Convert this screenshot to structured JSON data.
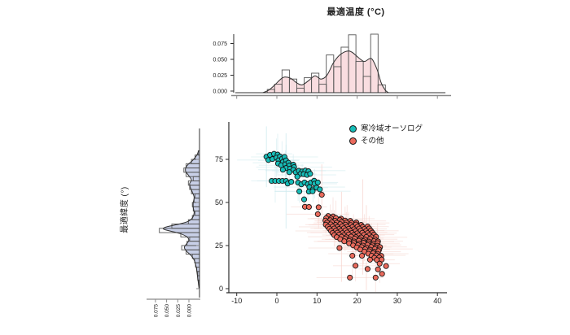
{
  "figure": {
    "title": "最適温度 (°C)",
    "ylabel": "最適緯度 (°)"
  },
  "legend": {
    "items": [
      {
        "label": "寒冷域オーソログ",
        "color": "#16bdb8"
      },
      {
        "label": "その他",
        "color": "#ea6a5c"
      }
    ]
  },
  "style": {
    "point_stroke": "#141414",
    "axis_color": "#2b2b2b",
    "minor_axis_color": "#8a8a8a",
    "tick_label_color": "#1a1a1a",
    "err_cold": "#cdeaef",
    "err_other": "#f7d5cf"
  },
  "chart_data": {
    "type": "scatter",
    "title": "最適温度 (°C)",
    "xlabel": "最適温度 (°C)",
    "ylabel": "最適緯度 (°)",
    "xlim": [
      -12,
      42
    ],
    "ylim": [
      -2,
      82
    ],
    "x_ticks": [
      -10,
      0,
      10,
      20,
      30,
      40
    ],
    "y_ticks": [
      0,
      25,
      50,
      75
    ],
    "grid": false,
    "legend_position": "top-right-inside",
    "series": [
      {
        "name": "寒冷域オーソログ",
        "color": "#16bdb8",
        "marker": "circle",
        "points": [
          [
            -2.6,
            76.5
          ],
          [
            -1.7,
            77.6
          ],
          [
            -0.7,
            78.2
          ],
          [
            0.2,
            77.8
          ],
          [
            -2.1,
            74.6
          ],
          [
            -1.1,
            75.2
          ],
          [
            -0.1,
            76.0
          ],
          [
            0.8,
            76.6
          ],
          [
            0.4,
            74.4
          ],
          [
            1.3,
            75.4
          ],
          [
            1.9,
            76.4
          ],
          [
            1.5,
            73.5
          ],
          [
            2.3,
            74.4
          ],
          [
            0.3,
            72.6
          ],
          [
            1.1,
            71.6
          ],
          [
            2.1,
            72.1
          ],
          [
            2.9,
            73.0
          ],
          [
            3.1,
            71.4
          ],
          [
            2.3,
            70.0
          ],
          [
            3.3,
            69.6
          ],
          [
            1.5,
            69.0
          ],
          [
            4.1,
            71.9
          ],
          [
            4.3,
            70.5
          ],
          [
            4.1,
            68.9
          ],
          [
            3.1,
            67.6
          ],
          [
            4.7,
            67.5
          ],
          [
            5.5,
            68.4
          ],
          [
            6.3,
            68.0
          ],
          [
            7.1,
            68.5
          ],
          [
            7.9,
            68.1
          ],
          [
            5.9,
            66.5
          ],
          [
            6.7,
            66.4
          ],
          [
            7.5,
            66.0
          ],
          [
            8.3,
            66.6
          ],
          [
            5.1,
            65.0
          ],
          [
            -1.3,
            62.5
          ],
          [
            -0.4,
            62.5
          ],
          [
            0.5,
            62.5
          ],
          [
            1.4,
            62.5
          ],
          [
            2.3,
            62.5
          ],
          [
            2.7,
            61.0
          ],
          [
            3.6,
            62.0
          ],
          [
            5.3,
            61.5
          ],
          [
            6.1,
            60.5
          ],
          [
            6.9,
            61.6
          ],
          [
            7.7,
            60.6
          ],
          [
            8.5,
            61.6
          ],
          [
            9.3,
            62.6
          ],
          [
            9.4,
            60.9
          ],
          [
            10.2,
            61.6
          ],
          [
            8.1,
            58.9
          ],
          [
            9.0,
            57.6
          ],
          [
            9.9,
            58.6
          ],
          [
            10.7,
            57.6
          ],
          [
            5.6,
            56.4
          ],
          [
            8.0,
            56.3
          ],
          [
            8.9,
            56.5
          ],
          [
            6.8,
            51.8
          ]
        ]
      },
      {
        "name": "その他",
        "color": "#ea6a5c",
        "marker": "circle",
        "points": [
          [
            11.2,
            54.5
          ],
          [
            7.0,
            47.5
          ],
          [
            8.0,
            47.4
          ],
          [
            10.4,
            47.2
          ],
          [
            10.2,
            43.2
          ],
          [
            12.8,
            42.1
          ],
          [
            14.0,
            41.9
          ],
          [
            12.3,
            40.9
          ],
          [
            13.5,
            40.7
          ],
          [
            14.7,
            41.0
          ],
          [
            16.0,
            40.6
          ],
          [
            12.1,
            39.5
          ],
          [
            13.3,
            39.7
          ],
          [
            14.5,
            39.4
          ],
          [
            15.7,
            39.8
          ],
          [
            17.0,
            39.5
          ],
          [
            18.3,
            39.3
          ],
          [
            12.5,
            38.3
          ],
          [
            13.7,
            38.5
          ],
          [
            14.9,
            38.2
          ],
          [
            16.1,
            38.6
          ],
          [
            17.3,
            38.3
          ],
          [
            18.6,
            38.1
          ],
          [
            19.8,
            38.4
          ],
          [
            12.2,
            37.1
          ],
          [
            13.4,
            37.3
          ],
          [
            14.6,
            37.0
          ],
          [
            15.8,
            37.4
          ],
          [
            17.1,
            37.1
          ],
          [
            18.4,
            36.9
          ],
          [
            19.7,
            37.2
          ],
          [
            21.0,
            37.0
          ],
          [
            12.7,
            35.9
          ],
          [
            13.9,
            36.1
          ],
          [
            15.1,
            35.8
          ],
          [
            16.3,
            36.2
          ],
          [
            17.5,
            35.9
          ],
          [
            18.8,
            35.7
          ],
          [
            20.1,
            36.0
          ],
          [
            21.4,
            35.8
          ],
          [
            22.6,
            36.1
          ],
          [
            13.1,
            34.7
          ],
          [
            14.3,
            34.9
          ],
          [
            15.5,
            34.6
          ],
          [
            16.7,
            35.0
          ],
          [
            17.9,
            34.7
          ],
          [
            19.2,
            34.5
          ],
          [
            20.5,
            34.8
          ],
          [
            21.8,
            34.6
          ],
          [
            23.0,
            34.9
          ],
          [
            13.5,
            33.5
          ],
          [
            14.7,
            33.7
          ],
          [
            15.9,
            33.4
          ],
          [
            17.1,
            33.8
          ],
          [
            18.3,
            33.5
          ],
          [
            19.6,
            33.3
          ],
          [
            20.9,
            33.6
          ],
          [
            22.2,
            33.4
          ],
          [
            23.4,
            33.7
          ],
          [
            13.9,
            32.3
          ],
          [
            15.1,
            32.5
          ],
          [
            16.3,
            32.2
          ],
          [
            17.5,
            32.6
          ],
          [
            18.7,
            32.3
          ],
          [
            20.0,
            32.1
          ],
          [
            21.3,
            32.4
          ],
          [
            22.6,
            32.2
          ],
          [
            23.8,
            32.5
          ],
          [
            14.3,
            31.1
          ],
          [
            15.5,
            31.3
          ],
          [
            16.7,
            31.0
          ],
          [
            17.9,
            31.4
          ],
          [
            19.1,
            31.1
          ],
          [
            20.4,
            30.9
          ],
          [
            21.7,
            31.2
          ],
          [
            23.0,
            31.0
          ],
          [
            24.2,
            31.3
          ],
          [
            14.9,
            29.9
          ],
          [
            16.1,
            30.1
          ],
          [
            17.3,
            29.8
          ],
          [
            18.5,
            30.2
          ],
          [
            19.7,
            29.9
          ],
          [
            21.0,
            29.7
          ],
          [
            22.3,
            30.0
          ],
          [
            23.6,
            29.8
          ],
          [
            24.7,
            30.1
          ],
          [
            15.8,
            28.7
          ],
          [
            17.0,
            28.9
          ],
          [
            18.2,
            28.6
          ],
          [
            19.4,
            29.0
          ],
          [
            20.6,
            28.7
          ],
          [
            21.9,
            28.5
          ],
          [
            23.2,
            28.8
          ],
          [
            24.4,
            28.6
          ],
          [
            16.8,
            27.5
          ],
          [
            18.0,
            27.7
          ],
          [
            19.2,
            27.4
          ],
          [
            20.4,
            27.8
          ],
          [
            21.6,
            27.5
          ],
          [
            22.9,
            27.3
          ],
          [
            24.2,
            27.6
          ],
          [
            25.2,
            27.4
          ],
          [
            18.0,
            26.3
          ],
          [
            19.2,
            26.5
          ],
          [
            20.4,
            26.2
          ],
          [
            21.6,
            26.6
          ],
          [
            22.8,
            26.3
          ],
          [
            24.0,
            26.1
          ],
          [
            25.1,
            26.4
          ],
          [
            19.0,
            25.1
          ],
          [
            20.2,
            25.3
          ],
          [
            21.4,
            25.0
          ],
          [
            22.6,
            25.4
          ],
          [
            23.8,
            25.1
          ],
          [
            25.0,
            24.9
          ],
          [
            19.9,
            23.9
          ],
          [
            21.1,
            24.1
          ],
          [
            22.3,
            23.8
          ],
          [
            23.5,
            24.2
          ],
          [
            24.7,
            23.9
          ],
          [
            25.7,
            24.1
          ],
          [
            20.8,
            22.7
          ],
          [
            22.0,
            22.9
          ],
          [
            23.2,
            22.6
          ],
          [
            24.4,
            23.0
          ],
          [
            25.5,
            22.7
          ],
          [
            21.8,
            21.5
          ],
          [
            23.0,
            21.7
          ],
          [
            24.2,
            21.4
          ],
          [
            25.3,
            21.8
          ],
          [
            22.8,
            20.3
          ],
          [
            24.0,
            20.5
          ],
          [
            25.1,
            20.2
          ],
          [
            23.6,
            19.1
          ],
          [
            24.8,
            19.3
          ],
          [
            26.0,
            19.0
          ],
          [
            24.3,
            17.9
          ],
          [
            25.5,
            18.1
          ],
          [
            24.9,
            16.7
          ],
          [
            26.1,
            16.9
          ],
          [
            15.6,
            23.6
          ],
          [
            18.8,
            19.1
          ],
          [
            21.2,
            19.1
          ],
          [
            23.2,
            16.8
          ],
          [
            25.6,
            14.5
          ],
          [
            26.2,
            8.6
          ],
          [
            18.2,
            6.4
          ],
          [
            24.6,
            6.4
          ],
          [
            22.6,
            11.4
          ],
          [
            25.2,
            11.2
          ],
          [
            19.6,
            13.3
          ],
          [
            27.2,
            13.1
          ]
        ]
      }
    ],
    "marginal_top": {
      "variable": "最適温度",
      "orientation": "horizontal",
      "density_ticks": {
        "values": [
          0,
          0.025,
          0.05,
          0.075
        ],
        "labels": [
          "0.000",
          "0.025",
          "0.050",
          "0.075"
        ]
      },
      "bins": {
        "start": -2.4,
        "width": 1.84,
        "heights": [
          0.005,
          0.013,
          0.035,
          0.021,
          0.007,
          0.023,
          0.03,
          0.013,
          0.058,
          0.04,
          0.07,
          0.089,
          0.048,
          0.025,
          0.09,
          0.012
        ]
      },
      "kde": [
        [
          -3.5,
          0.0
        ],
        [
          -2,
          0.004
        ],
        [
          -0.5,
          0.012
        ],
        [
          1,
          0.021
        ],
        [
          2,
          0.024
        ],
        [
          3.5,
          0.022
        ],
        [
          5,
          0.015
        ],
        [
          6.3,
          0.012
        ],
        [
          8,
          0.019
        ],
        [
          9.5,
          0.026
        ],
        [
          11,
          0.021
        ],
        [
          12.5,
          0.027
        ],
        [
          14,
          0.045
        ],
        [
          15.5,
          0.057
        ],
        [
          17,
          0.063
        ],
        [
          18,
          0.064
        ],
        [
          19,
          0.061
        ],
        [
          20.5,
          0.053
        ],
        [
          21.8,
          0.048
        ],
        [
          23,
          0.052
        ],
        [
          23.8,
          0.051
        ],
        [
          25,
          0.035
        ],
        [
          26,
          0.015
        ],
        [
          27,
          0.004
        ],
        [
          27.8,
          0.0
        ]
      ],
      "fill": "#f9dde0",
      "bar_fill": "#ffffff",
      "line": "#2f2f2f"
    },
    "marginal_left": {
      "variable": "最適緯度",
      "orientation": "vertical",
      "density_ticks": {
        "values": [
          0.075,
          0.05,
          0.025,
          0
        ],
        "labels": [
          "0.075",
          "0.050",
          "0.025",
          "0.000"
        ]
      },
      "bins": {
        "start": 0,
        "width": 2.5,
        "heights": [
          0.001,
          0.002,
          0.004,
          0.004,
          0.006,
          0.009,
          0.011,
          0.016,
          0.03,
          0.04,
          0.028,
          0.022,
          0.042,
          0.09,
          0.062,
          0.025,
          0.016,
          0.01,
          0.014,
          0.016,
          0.012,
          0.01,
          0.018,
          0.022,
          0.025,
          0.014,
          0.03,
          0.035,
          0.03,
          0.018,
          0.01,
          0.003
        ]
      },
      "kde": [
        [
          0,
          0.001
        ],
        [
          4,
          0.003
        ],
        [
          8,
          0.005
        ],
        [
          12,
          0.007
        ],
        [
          16,
          0.011
        ],
        [
          19,
          0.018
        ],
        [
          22,
          0.03
        ],
        [
          24,
          0.034
        ],
        [
          26,
          0.029
        ],
        [
          28,
          0.024
        ],
        [
          30,
          0.028
        ],
        [
          32,
          0.044
        ],
        [
          34,
          0.075
        ],
        [
          35,
          0.081
        ],
        [
          36,
          0.072
        ],
        [
          37.5,
          0.045
        ],
        [
          39,
          0.026
        ],
        [
          41,
          0.016
        ],
        [
          44,
          0.012
        ],
        [
          47,
          0.014
        ],
        [
          50,
          0.014
        ],
        [
          53,
          0.012
        ],
        [
          56,
          0.016
        ],
        [
          59,
          0.021
        ],
        [
          61,
          0.022
        ],
        [
          63,
          0.018
        ],
        [
          65.5,
          0.024
        ],
        [
          68,
          0.031
        ],
        [
          70,
          0.031
        ],
        [
          72,
          0.026
        ],
        [
          74,
          0.017
        ],
        [
          76,
          0.01
        ],
        [
          78,
          0.005
        ],
        [
          80,
          0.002
        ]
      ],
      "fill": "#c8cfe7",
      "bar_fill": "#ffffff",
      "line": "#2f2f2f"
    }
  }
}
